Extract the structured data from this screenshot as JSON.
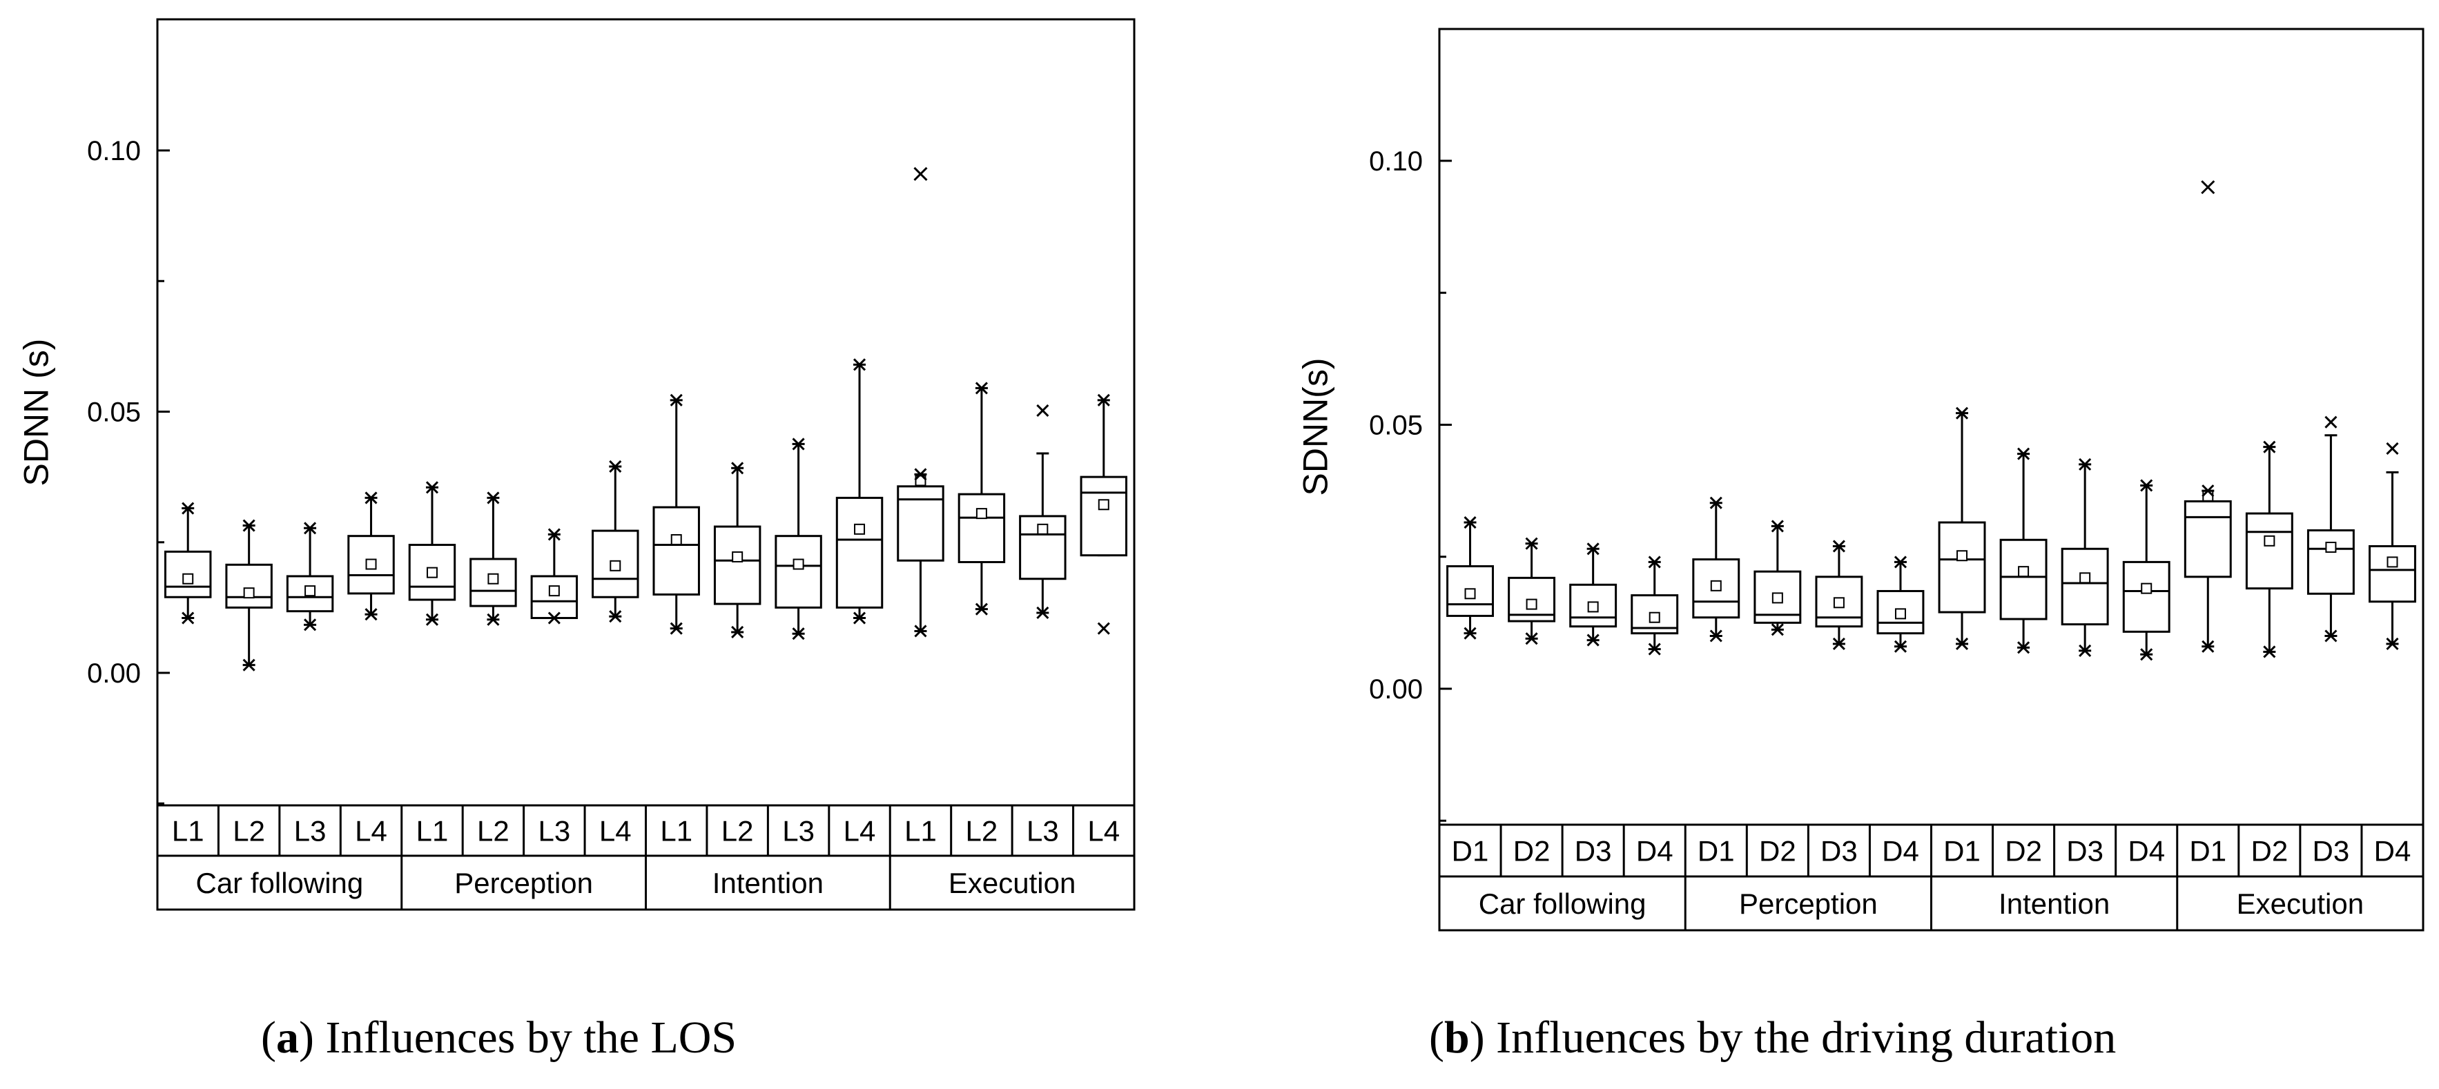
{
  "chart_data": [
    {
      "type": "box",
      "panel": "a",
      "caption_label": "a",
      "caption_text": ") Influences by the LOS",
      "ylabel": "SDNN (s)",
      "ylim": [
        -0.025,
        0.125
      ],
      "yticks": [
        0.0,
        0.05,
        0.1
      ],
      "ytick_labels": [
        "0.00",
        "0.05",
        "0.10"
      ],
      "groups": [
        "Car following",
        "Perception",
        "Intention",
        "Execution"
      ],
      "levels": [
        "L1",
        "L2",
        "L3",
        "L4"
      ],
      "boxes": [
        {
          "group": "Car following",
          "level": "L1",
          "whisker_low": 0.0105,
          "q1": 0.0145,
          "median": 0.0165,
          "q3": 0.0232,
          "whisker_high": 0.0315,
          "mean": 0.018,
          "min_marker": 0.0105,
          "max_marker": 0.0315
        },
        {
          "group": "Car following",
          "level": "L2",
          "whisker_low": 0.0015,
          "q1": 0.0125,
          "median": 0.0145,
          "q3": 0.0207,
          "whisker_high": 0.0282,
          "mean": 0.0153,
          "min_marker": 0.0015,
          "max_marker": 0.0282
        },
        {
          "group": "Car following",
          "level": "L3",
          "whisker_low": 0.0092,
          "q1": 0.0118,
          "median": 0.0145,
          "q3": 0.0185,
          "whisker_high": 0.0277,
          "mean": 0.0157,
          "min_marker": 0.0092,
          "max_marker": 0.0277
        },
        {
          "group": "Car following",
          "level": "L4",
          "whisker_low": 0.0112,
          "q1": 0.0152,
          "median": 0.0187,
          "q3": 0.0262,
          "whisker_high": 0.0335,
          "mean": 0.0208,
          "min_marker": 0.0112,
          "max_marker": 0.0335
        },
        {
          "group": "Perception",
          "level": "L1",
          "whisker_low": 0.0102,
          "q1": 0.014,
          "median": 0.0165,
          "q3": 0.0245,
          "whisker_high": 0.0355,
          "mean": 0.0192,
          "min_marker": 0.0102,
          "max_marker": 0.0355
        },
        {
          "group": "Perception",
          "level": "L2",
          "whisker_low": 0.0102,
          "q1": 0.0128,
          "median": 0.0157,
          "q3": 0.0218,
          "whisker_high": 0.0335,
          "mean": 0.018,
          "min_marker": 0.0102,
          "max_marker": 0.0335
        },
        {
          "group": "Perception",
          "level": "L3",
          "whisker_low": 0.0105,
          "q1": 0.0105,
          "median": 0.0137,
          "q3": 0.0185,
          "whisker_high": 0.0265,
          "mean": 0.0157,
          "min_marker": 0.0105,
          "max_marker": 0.0265
        },
        {
          "group": "Perception",
          "level": "L4",
          "whisker_low": 0.0108,
          "q1": 0.0145,
          "median": 0.018,
          "q3": 0.0272,
          "whisker_high": 0.0395,
          "mean": 0.0205,
          "min_marker": 0.0108,
          "max_marker": 0.0395
        },
        {
          "group": "Intention",
          "level": "L1",
          "whisker_low": 0.0085,
          "q1": 0.015,
          "median": 0.0245,
          "q3": 0.0317,
          "whisker_high": 0.0522,
          "mean": 0.0255,
          "min_marker": 0.0085,
          "max_marker": 0.0522
        },
        {
          "group": "Intention",
          "level": "L2",
          "whisker_low": 0.0078,
          "q1": 0.0132,
          "median": 0.0215,
          "q3": 0.028,
          "whisker_high": 0.0392,
          "mean": 0.0222,
          "min_marker": 0.0078,
          "max_marker": 0.0392
        },
        {
          "group": "Intention",
          "level": "L3",
          "whisker_low": 0.0075,
          "q1": 0.0125,
          "median": 0.0205,
          "q3": 0.0262,
          "whisker_high": 0.0438,
          "mean": 0.0208,
          "min_marker": 0.0075,
          "max_marker": 0.0438
        },
        {
          "group": "Intention",
          "level": "L4",
          "whisker_low": 0.0105,
          "q1": 0.0125,
          "median": 0.0255,
          "q3": 0.0335,
          "whisker_high": 0.059,
          "mean": 0.0275,
          "min_marker": 0.0105,
          "max_marker": 0.059
        },
        {
          "group": "Execution",
          "level": "L1",
          "whisker_low": 0.008,
          "q1": 0.0215,
          "median": 0.0332,
          "q3": 0.0357,
          "whisker_high": 0.038,
          "mean": 0.0368,
          "min_marker": 0.008,
          "max_marker": 0.038,
          "outliers": [
            0.0955
          ]
        },
        {
          "group": "Execution",
          "level": "L2",
          "whisker_low": 0.0122,
          "q1": 0.0212,
          "median": 0.0297,
          "q3": 0.0342,
          "whisker_high": 0.0545,
          "mean": 0.0305,
          "min_marker": 0.0122,
          "max_marker": 0.0545
        },
        {
          "group": "Execution",
          "level": "L3",
          "whisker_low": 0.0115,
          "q1": 0.018,
          "median": 0.0265,
          "q3": 0.03,
          "whisker_high": 0.042,
          "mean": 0.0275,
          "min_marker": 0.0115,
          "max_marker": 0.0502
        },
        {
          "group": "Execution",
          "level": "L4",
          "whisker_low": 0.0225,
          "q1": 0.0225,
          "median": 0.0345,
          "q3": 0.0375,
          "whisker_high": 0.0522,
          "mean": 0.0322,
          "min_marker": 0.0085,
          "max_marker": 0.0522
        }
      ]
    },
    {
      "type": "box",
      "panel": "b",
      "caption_label": "b",
      "caption_text": ") Influences by the driving duration",
      "ylabel": "SDNN(s)",
      "ylim": [
        -0.025,
        0.125
      ],
      "yticks": [
        0.0,
        0.05,
        0.1
      ],
      "ytick_labels": [
        "0.00",
        "0.05",
        "0.10"
      ],
      "groups": [
        "Car following",
        "Perception",
        "Intention",
        "Execution"
      ],
      "levels": [
        "D1",
        "D2",
        "D3",
        "D4"
      ],
      "boxes": [
        {
          "group": "Car following",
          "level": "D1",
          "whisker_low": 0.0105,
          "q1": 0.0138,
          "median": 0.016,
          "q3": 0.0232,
          "whisker_high": 0.0315,
          "mean": 0.018,
          "min_marker": 0.0105,
          "max_marker": 0.0315
        },
        {
          "group": "Car following",
          "level": "D2",
          "whisker_low": 0.0095,
          "q1": 0.0128,
          "median": 0.014,
          "q3": 0.021,
          "whisker_high": 0.0275,
          "mean": 0.016,
          "min_marker": 0.0095,
          "max_marker": 0.0275
        },
        {
          "group": "Car following",
          "level": "D3",
          "whisker_low": 0.0092,
          "q1": 0.0118,
          "median": 0.0135,
          "q3": 0.0197,
          "whisker_high": 0.0265,
          "mean": 0.0155,
          "min_marker": 0.0092,
          "max_marker": 0.0265
        },
        {
          "group": "Car following",
          "level": "D4",
          "whisker_low": 0.0075,
          "q1": 0.0105,
          "median": 0.0115,
          "q3": 0.0177,
          "whisker_high": 0.024,
          "mean": 0.0135,
          "min_marker": 0.0075,
          "max_marker": 0.024
        },
        {
          "group": "Perception",
          "level": "D1",
          "whisker_low": 0.01,
          "q1": 0.0135,
          "median": 0.0165,
          "q3": 0.0245,
          "whisker_high": 0.0352,
          "mean": 0.0195,
          "min_marker": 0.01,
          "max_marker": 0.0352
        },
        {
          "group": "Perception",
          "level": "D2",
          "whisker_low": 0.0112,
          "q1": 0.0125,
          "median": 0.014,
          "q3": 0.0222,
          "whisker_high": 0.0308,
          "mean": 0.0172,
          "min_marker": 0.0112,
          "max_marker": 0.0308
        },
        {
          "group": "Perception",
          "level": "D3",
          "whisker_low": 0.0085,
          "q1": 0.0118,
          "median": 0.0135,
          "q3": 0.0212,
          "whisker_high": 0.027,
          "mean": 0.0163,
          "min_marker": 0.0085,
          "max_marker": 0.027
        },
        {
          "group": "Perception",
          "level": "D4",
          "whisker_low": 0.008,
          "q1": 0.0105,
          "median": 0.0125,
          "q3": 0.0185,
          "whisker_high": 0.024,
          "mean": 0.0142,
          "min_marker": 0.008,
          "max_marker": 0.024
        },
        {
          "group": "Intention",
          "level": "D1",
          "whisker_low": 0.0085,
          "q1": 0.0145,
          "median": 0.0245,
          "q3": 0.0315,
          "whisker_high": 0.0522,
          "mean": 0.0252,
          "min_marker": 0.0085,
          "max_marker": 0.0522
        },
        {
          "group": "Intention",
          "level": "D2",
          "whisker_low": 0.0078,
          "q1": 0.0132,
          "median": 0.0212,
          "q3": 0.0282,
          "whisker_high": 0.0445,
          "mean": 0.0222,
          "min_marker": 0.0078,
          "max_marker": 0.0445
        },
        {
          "group": "Intention",
          "level": "D3",
          "whisker_low": 0.0072,
          "q1": 0.0122,
          "median": 0.02,
          "q3": 0.0265,
          "whisker_high": 0.0425,
          "mean": 0.021,
          "min_marker": 0.0072,
          "max_marker": 0.0425
        },
        {
          "group": "Intention",
          "level": "D4",
          "whisker_low": 0.0065,
          "q1": 0.0108,
          "median": 0.0185,
          "q3": 0.024,
          "whisker_high": 0.0385,
          "mean": 0.019,
          "min_marker": 0.0065,
          "max_marker": 0.0385
        },
        {
          "group": "Execution",
          "level": "D1",
          "whisker_low": 0.008,
          "q1": 0.0212,
          "median": 0.0325,
          "q3": 0.0355,
          "whisker_high": 0.0375,
          "mean": 0.0365,
          "min_marker": 0.008,
          "max_marker": 0.0375,
          "outliers": [
            0.095
          ]
        },
        {
          "group": "Execution",
          "level": "D2",
          "whisker_low": 0.007,
          "q1": 0.019,
          "median": 0.0297,
          "q3": 0.0332,
          "whisker_high": 0.0458,
          "mean": 0.028,
          "min_marker": 0.007,
          "max_marker": 0.0458
        },
        {
          "group": "Execution",
          "level": "D3",
          "whisker_low": 0.01,
          "q1": 0.018,
          "median": 0.0265,
          "q3": 0.03,
          "whisker_high": 0.048,
          "mean": 0.0268,
          "min_marker": 0.01,
          "max_marker": 0.0505
        },
        {
          "group": "Execution",
          "level": "D4",
          "whisker_low": 0.0085,
          "q1": 0.0165,
          "median": 0.0225,
          "q3": 0.027,
          "whisker_high": 0.041,
          "mean": 0.024,
          "min_marker": 0.0085,
          "max_marker": 0.0455
        }
      ]
    }
  ]
}
